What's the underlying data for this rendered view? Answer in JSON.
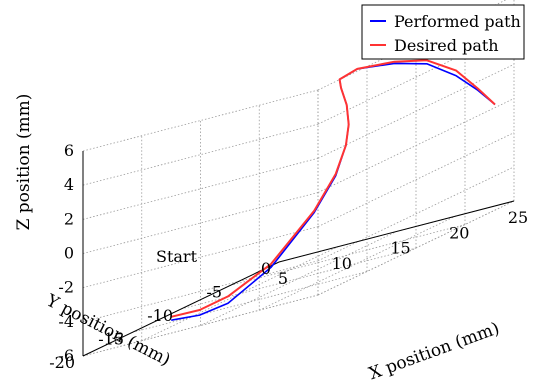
{
  "chart_data": {
    "type": "line",
    "view": "3d",
    "title": "",
    "xlabel": "X position (mm)",
    "ylabel": "Y position (mm)",
    "zlabel": "Z position (mm)",
    "xlim": [
      5,
      25
    ],
    "ylim": [
      -20,
      0
    ],
    "zlim": [
      -6,
      6
    ],
    "x_ticks": [
      "5",
      "10",
      "15",
      "20",
      "25"
    ],
    "y_ticks": [
      "0",
      "-5",
      "-10",
      "-15",
      "-20"
    ],
    "z_ticks": [
      "6",
      "4",
      "2",
      "0",
      "-2",
      "-4",
      "-6"
    ],
    "grid": true,
    "legend_position": "top-right",
    "annotation": "Start",
    "series": [
      {
        "name": "Performed path",
        "color": "#0000ff",
        "points": [
          [
            7.5,
            -14.0,
            -6.0
          ],
          [
            9.5,
            -13.5,
            -6.2
          ],
          [
            11.5,
            -13.0,
            -6.0
          ],
          [
            13.5,
            -11.0,
            -4.8
          ],
          [
            15.5,
            -9.0,
            -2.5
          ],
          [
            16.5,
            -8.0,
            -0.8
          ],
          [
            17.2,
            -7.8,
            0.8
          ],
          [
            17.6,
            -8.0,
            2.0
          ],
          [
            17.6,
            -8.2,
            3.2
          ],
          [
            17.2,
            -8.3,
            4.3
          ],
          [
            17.0,
            -8.2,
            4.8
          ],
          [
            17.5,
            -7.0,
            5.0
          ],
          [
            19.0,
            -5.0,
            4.5
          ],
          [
            20.5,
            -3.5,
            3.8
          ],
          [
            22.0,
            -2.3,
            2.5
          ],
          [
            23.0,
            -1.3,
            1.2
          ],
          [
            23.8,
            -0.5,
            0.0
          ]
        ]
      },
      {
        "name": "Desired path",
        "color": "#ff3333",
        "points": [
          [
            7.5,
            -14.0,
            -5.8
          ],
          [
            9.5,
            -13.5,
            -5.9
          ],
          [
            11.5,
            -13.0,
            -5.6
          ],
          [
            13.5,
            -11.0,
            -4.6
          ],
          [
            15.5,
            -9.0,
            -2.4
          ],
          [
            16.5,
            -8.0,
            -0.7
          ],
          [
            17.2,
            -7.8,
            0.8
          ],
          [
            17.6,
            -8.0,
            2.0
          ],
          [
            17.6,
            -8.2,
            3.2
          ],
          [
            17.2,
            -8.3,
            4.3
          ],
          [
            17.0,
            -8.2,
            4.8
          ],
          [
            17.5,
            -7.0,
            5.0
          ],
          [
            19.0,
            -5.0,
            4.6
          ],
          [
            20.5,
            -3.5,
            4.0
          ],
          [
            22.0,
            -2.3,
            2.8
          ],
          [
            23.0,
            -1.3,
            1.3
          ],
          [
            23.8,
            -0.5,
            0.0
          ]
        ]
      }
    ]
  }
}
